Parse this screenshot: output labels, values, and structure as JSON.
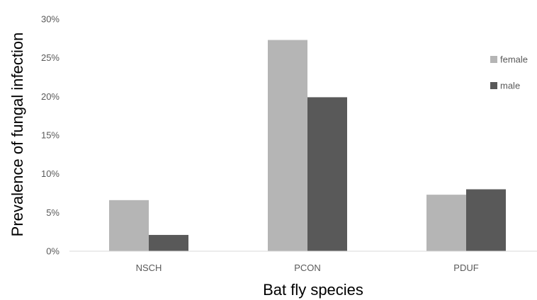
{
  "chart_data": {
    "type": "bar",
    "title": "",
    "xlabel": "Bat fly species",
    "ylabel": "Prevalence of fungal infection",
    "categories": [
      "NSCH",
      "PCON",
      "PDUF"
    ],
    "series": [
      {
        "name": "female",
        "values": [
          6.6,
          27.3,
          7.3
        ],
        "color": "#b5b5b5"
      },
      {
        "name": "male",
        "values": [
          2.1,
          19.9,
          8.0
        ],
        "color": "#595959"
      }
    ],
    "ylim": [
      0,
      30
    ],
    "yticks": [
      0,
      5,
      10,
      15,
      20,
      25,
      30
    ],
    "ytick_labels": [
      "0%",
      "5%",
      "10%",
      "15%",
      "20%",
      "25%",
      "30%"
    ],
    "grid": false,
    "legend_position": "right"
  }
}
